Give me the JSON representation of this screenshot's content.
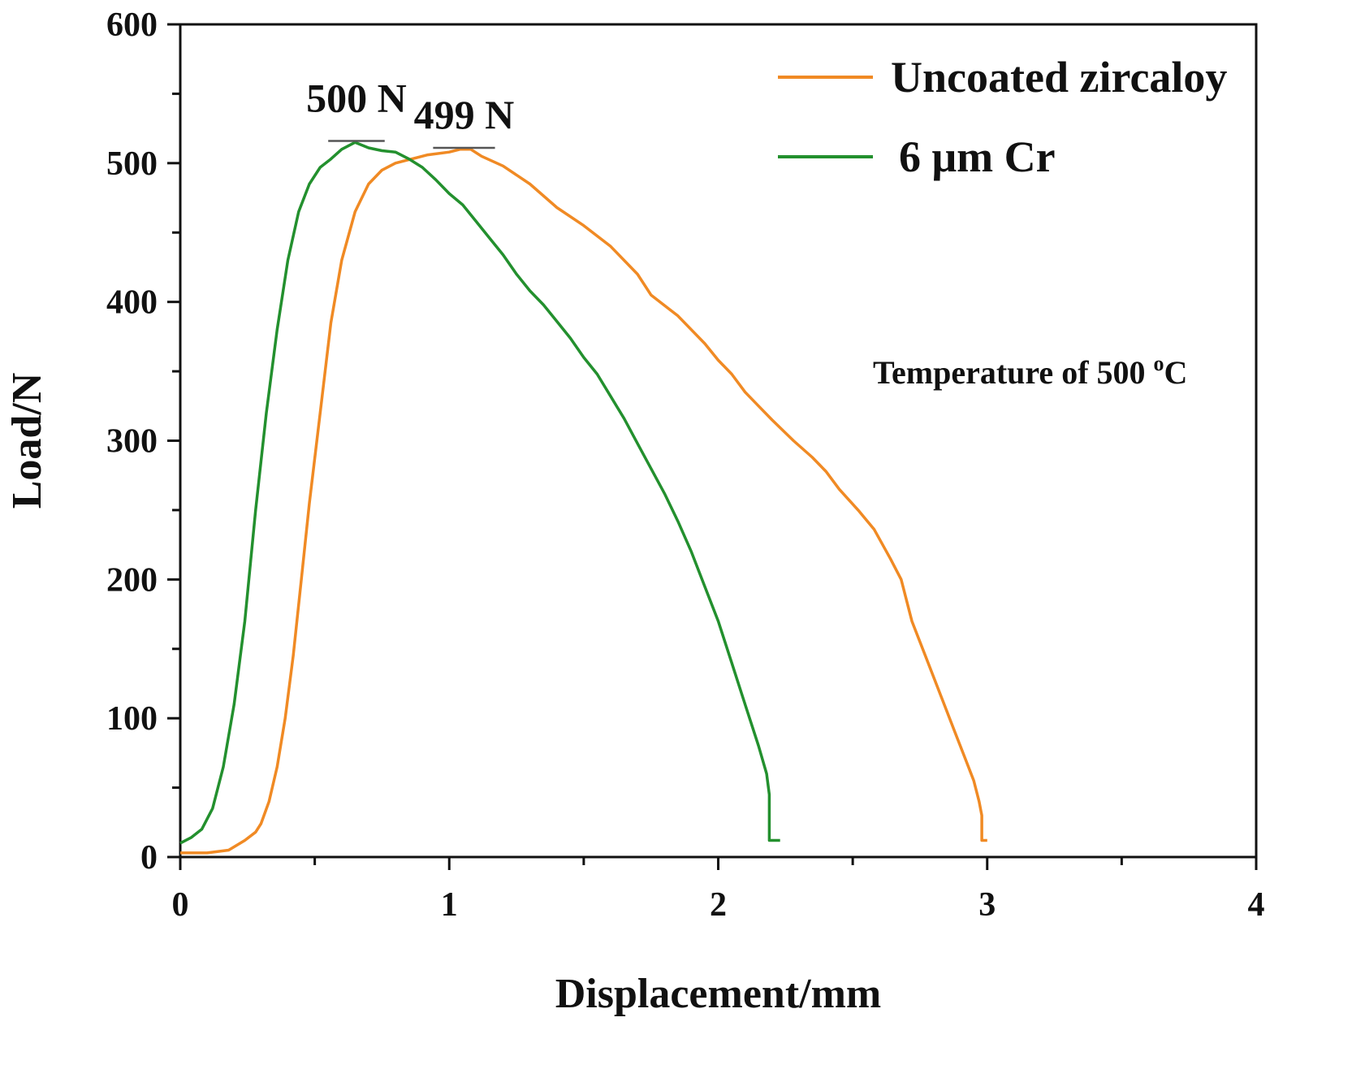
{
  "chart_data": {
    "type": "line",
    "title": "",
    "xlabel": "Displacement/mm",
    "ylabel": "Load/N",
    "xlim": [
      0,
      4
    ],
    "ylim": [
      0,
      600
    ],
    "x_ticks": [
      0,
      1,
      2,
      3,
      4
    ],
    "y_ticks": [
      0,
      100,
      200,
      300,
      400,
      500,
      600
    ],
    "x_tick_labels": [
      "0",
      "1",
      "2",
      "3",
      "4"
    ],
    "y_tick_labels": [
      "0",
      "100",
      "200",
      "300",
      "400",
      "500",
      "600"
    ],
    "legend_position": "top-right",
    "annotation": {
      "text": "Temperature of 500 ",
      "superscript": "o",
      "suffix": "C"
    },
    "peak_labels": [
      {
        "text": "500 N",
        "x_start": 0.55,
        "x_end": 0.76,
        "y": 516,
        "series": "6 μm Cr"
      },
      {
        "text": "499 N",
        "x_start": 0.94,
        "x_end": 1.17,
        "y": 511,
        "series": "Uncoated zircaloy"
      }
    ],
    "series": [
      {
        "name": "Uncoated zircaloy",
        "color": "#f08a24",
        "points": [
          [
            0,
            3
          ],
          [
            0.1,
            3
          ],
          [
            0.18,
            5
          ],
          [
            0.24,
            12
          ],
          [
            0.28,
            18
          ],
          [
            0.3,
            24
          ],
          [
            0.33,
            40
          ],
          [
            0.36,
            65
          ],
          [
            0.39,
            100
          ],
          [
            0.42,
            145
          ],
          [
            0.45,
            200
          ],
          [
            0.48,
            255
          ],
          [
            0.52,
            320
          ],
          [
            0.56,
            385
          ],
          [
            0.6,
            430
          ],
          [
            0.65,
            465
          ],
          [
            0.7,
            485
          ],
          [
            0.75,
            495
          ],
          [
            0.8,
            500
          ],
          [
            0.86,
            503
          ],
          [
            0.92,
            506
          ],
          [
            1.0,
            508
          ],
          [
            1.04,
            510
          ],
          [
            1.08,
            510
          ],
          [
            1.12,
            505
          ],
          [
            1.2,
            498
          ],
          [
            1.3,
            485
          ],
          [
            1.4,
            468
          ],
          [
            1.5,
            455
          ],
          [
            1.6,
            440
          ],
          [
            1.7,
            420
          ],
          [
            1.75,
            405
          ],
          [
            1.85,
            390
          ],
          [
            1.95,
            370
          ],
          [
            2.0,
            358
          ],
          [
            2.05,
            348
          ],
          [
            2.1,
            335
          ],
          [
            2.15,
            325
          ],
          [
            2.2,
            315
          ],
          [
            2.28,
            300
          ],
          [
            2.35,
            288
          ],
          [
            2.4,
            278
          ],
          [
            2.45,
            265
          ],
          [
            2.52,
            250
          ],
          [
            2.58,
            236
          ],
          [
            2.64,
            215
          ],
          [
            2.68,
            200
          ],
          [
            2.72,
            170
          ],
          [
            2.78,
            140
          ],
          [
            2.84,
            110
          ],
          [
            2.88,
            90
          ],
          [
            2.92,
            70
          ],
          [
            2.95,
            55
          ],
          [
            2.97,
            40
          ],
          [
            2.98,
            30
          ],
          [
            2.98,
            12
          ],
          [
            3.0,
            12
          ]
        ]
      },
      {
        "name": "6 μm Cr",
        "color": "#23902e",
        "points": [
          [
            0,
            10
          ],
          [
            0.04,
            14
          ],
          [
            0.08,
            20
          ],
          [
            0.12,
            35
          ],
          [
            0.16,
            65
          ],
          [
            0.2,
            110
          ],
          [
            0.24,
            170
          ],
          [
            0.28,
            250
          ],
          [
            0.32,
            320
          ],
          [
            0.36,
            380
          ],
          [
            0.4,
            430
          ],
          [
            0.44,
            465
          ],
          [
            0.48,
            485
          ],
          [
            0.52,
            497
          ],
          [
            0.56,
            503
          ],
          [
            0.6,
            510
          ],
          [
            0.65,
            515
          ],
          [
            0.7,
            511
          ],
          [
            0.75,
            509
          ],
          [
            0.8,
            508
          ],
          [
            0.85,
            503
          ],
          [
            0.9,
            497
          ],
          [
            0.95,
            488
          ],
          [
            1.0,
            478
          ],
          [
            1.05,
            470
          ],
          [
            1.1,
            458
          ],
          [
            1.15,
            446
          ],
          [
            1.2,
            434
          ],
          [
            1.25,
            420
          ],
          [
            1.3,
            408
          ],
          [
            1.35,
            398
          ],
          [
            1.4,
            386
          ],
          [
            1.45,
            374
          ],
          [
            1.5,
            360
          ],
          [
            1.55,
            348
          ],
          [
            1.6,
            332
          ],
          [
            1.65,
            316
          ],
          [
            1.7,
            298
          ],
          [
            1.75,
            280
          ],
          [
            1.8,
            262
          ],
          [
            1.85,
            242
          ],
          [
            1.9,
            220
          ],
          [
            1.95,
            195
          ],
          [
            2.0,
            170
          ],
          [
            2.05,
            140
          ],
          [
            2.1,
            110
          ],
          [
            2.15,
            80
          ],
          [
            2.18,
            60
          ],
          [
            2.19,
            45
          ],
          [
            2.19,
            12
          ],
          [
            2.23,
            12
          ]
        ]
      }
    ]
  }
}
